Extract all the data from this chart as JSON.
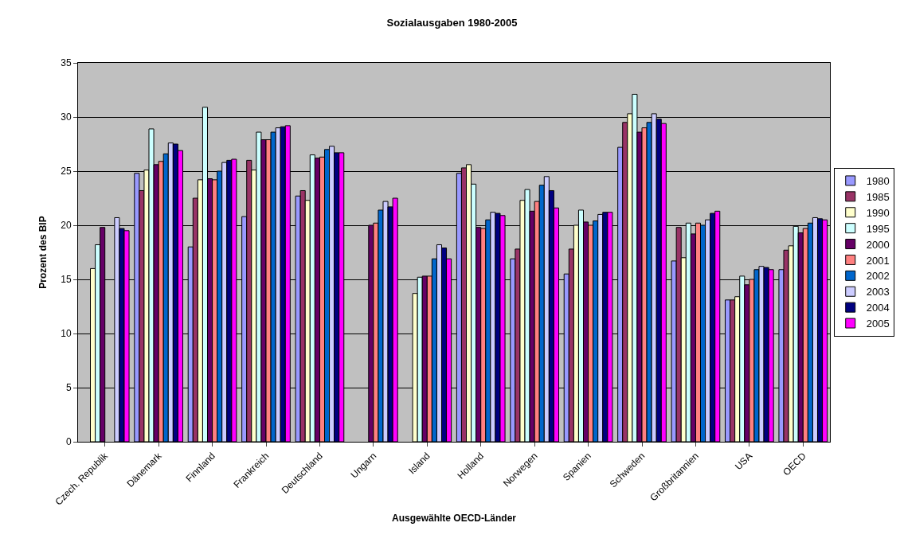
{
  "chart_data": {
    "type": "bar",
    "title": "Sozialausgaben 1980-2005",
    "xlabel": "Ausgewählte OECD-Länder",
    "ylabel": "Prozent des BIP",
    "categories": [
      "Czech. Republik",
      "Dänemark",
      "Finnland",
      "Frankreich",
      "Deutschland",
      "Ungarn",
      "Island",
      "Holland",
      "Norwegen",
      "Spanien",
      "Schweden",
      "Großbritannien",
      "USA",
      "OECD"
    ],
    "series": [
      {
        "name": "1980",
        "color": "#9999ff",
        "values": [
          null,
          24.8,
          18.0,
          20.8,
          22.7,
          null,
          null,
          24.8,
          16.9,
          15.5,
          27.2,
          16.7,
          13.1,
          15.9
        ]
      },
      {
        "name": "1985",
        "color": "#993366",
        "values": [
          null,
          23.2,
          22.5,
          26.0,
          23.2,
          null,
          null,
          25.3,
          17.8,
          17.8,
          29.5,
          19.8,
          13.1,
          17.7
        ]
      },
      {
        "name": "1990",
        "color": "#ffffcc",
        "values": [
          16.0,
          25.1,
          24.2,
          25.1,
          22.3,
          null,
          13.7,
          25.6,
          22.3,
          20.0,
          30.3,
          17.0,
          13.4,
          18.1
        ]
      },
      {
        "name": "1995",
        "color": "#ccffff",
        "values": [
          18.2,
          28.9,
          30.9,
          28.6,
          26.5,
          null,
          15.2,
          23.8,
          23.3,
          21.4,
          32.1,
          20.2,
          15.3,
          19.9
        ]
      },
      {
        "name": "2000",
        "color": "#660066",
        "values": [
          19.8,
          25.6,
          24.3,
          27.9,
          26.2,
          20.0,
          15.3,
          19.8,
          21.3,
          20.3,
          28.6,
          19.2,
          14.5,
          19.3
        ]
      },
      {
        "name": "2001",
        "color": "#ff8080",
        "values": [
          null,
          25.9,
          24.2,
          27.9,
          26.3,
          20.2,
          15.3,
          19.7,
          22.2,
          20.0,
          29.0,
          20.2,
          15.0,
          19.7
        ]
      },
      {
        "name": "2002",
        "color": "#0066cc",
        "values": [
          null,
          26.6,
          25.0,
          28.6,
          27.0,
          21.4,
          16.9,
          20.5,
          23.7,
          20.4,
          29.5,
          20.0,
          15.9,
          20.2
        ]
      },
      {
        "name": "2003",
        "color": "#ccccff",
        "values": [
          20.7,
          27.6,
          25.8,
          29.0,
          27.3,
          22.2,
          18.2,
          21.2,
          24.5,
          21.0,
          30.3,
          20.5,
          16.2,
          20.7
        ]
      },
      {
        "name": "2004",
        "color": "#000080",
        "values": [
          19.7,
          27.5,
          26.0,
          29.1,
          26.7,
          21.7,
          17.9,
          21.1,
          23.2,
          21.2,
          29.8,
          21.1,
          16.1,
          20.6
        ]
      },
      {
        "name": "2005",
        "color": "#ff00ff",
        "values": [
          19.5,
          26.9,
          26.1,
          29.2,
          26.7,
          22.5,
          16.9,
          20.9,
          21.6,
          21.2,
          29.4,
          21.3,
          15.9,
          20.5
        ]
      }
    ],
    "ylim": [
      0,
      35
    ],
    "yticks": [
      0,
      5,
      10,
      15,
      20,
      25,
      30,
      35
    ],
    "grid": "y",
    "legend": "right"
  }
}
